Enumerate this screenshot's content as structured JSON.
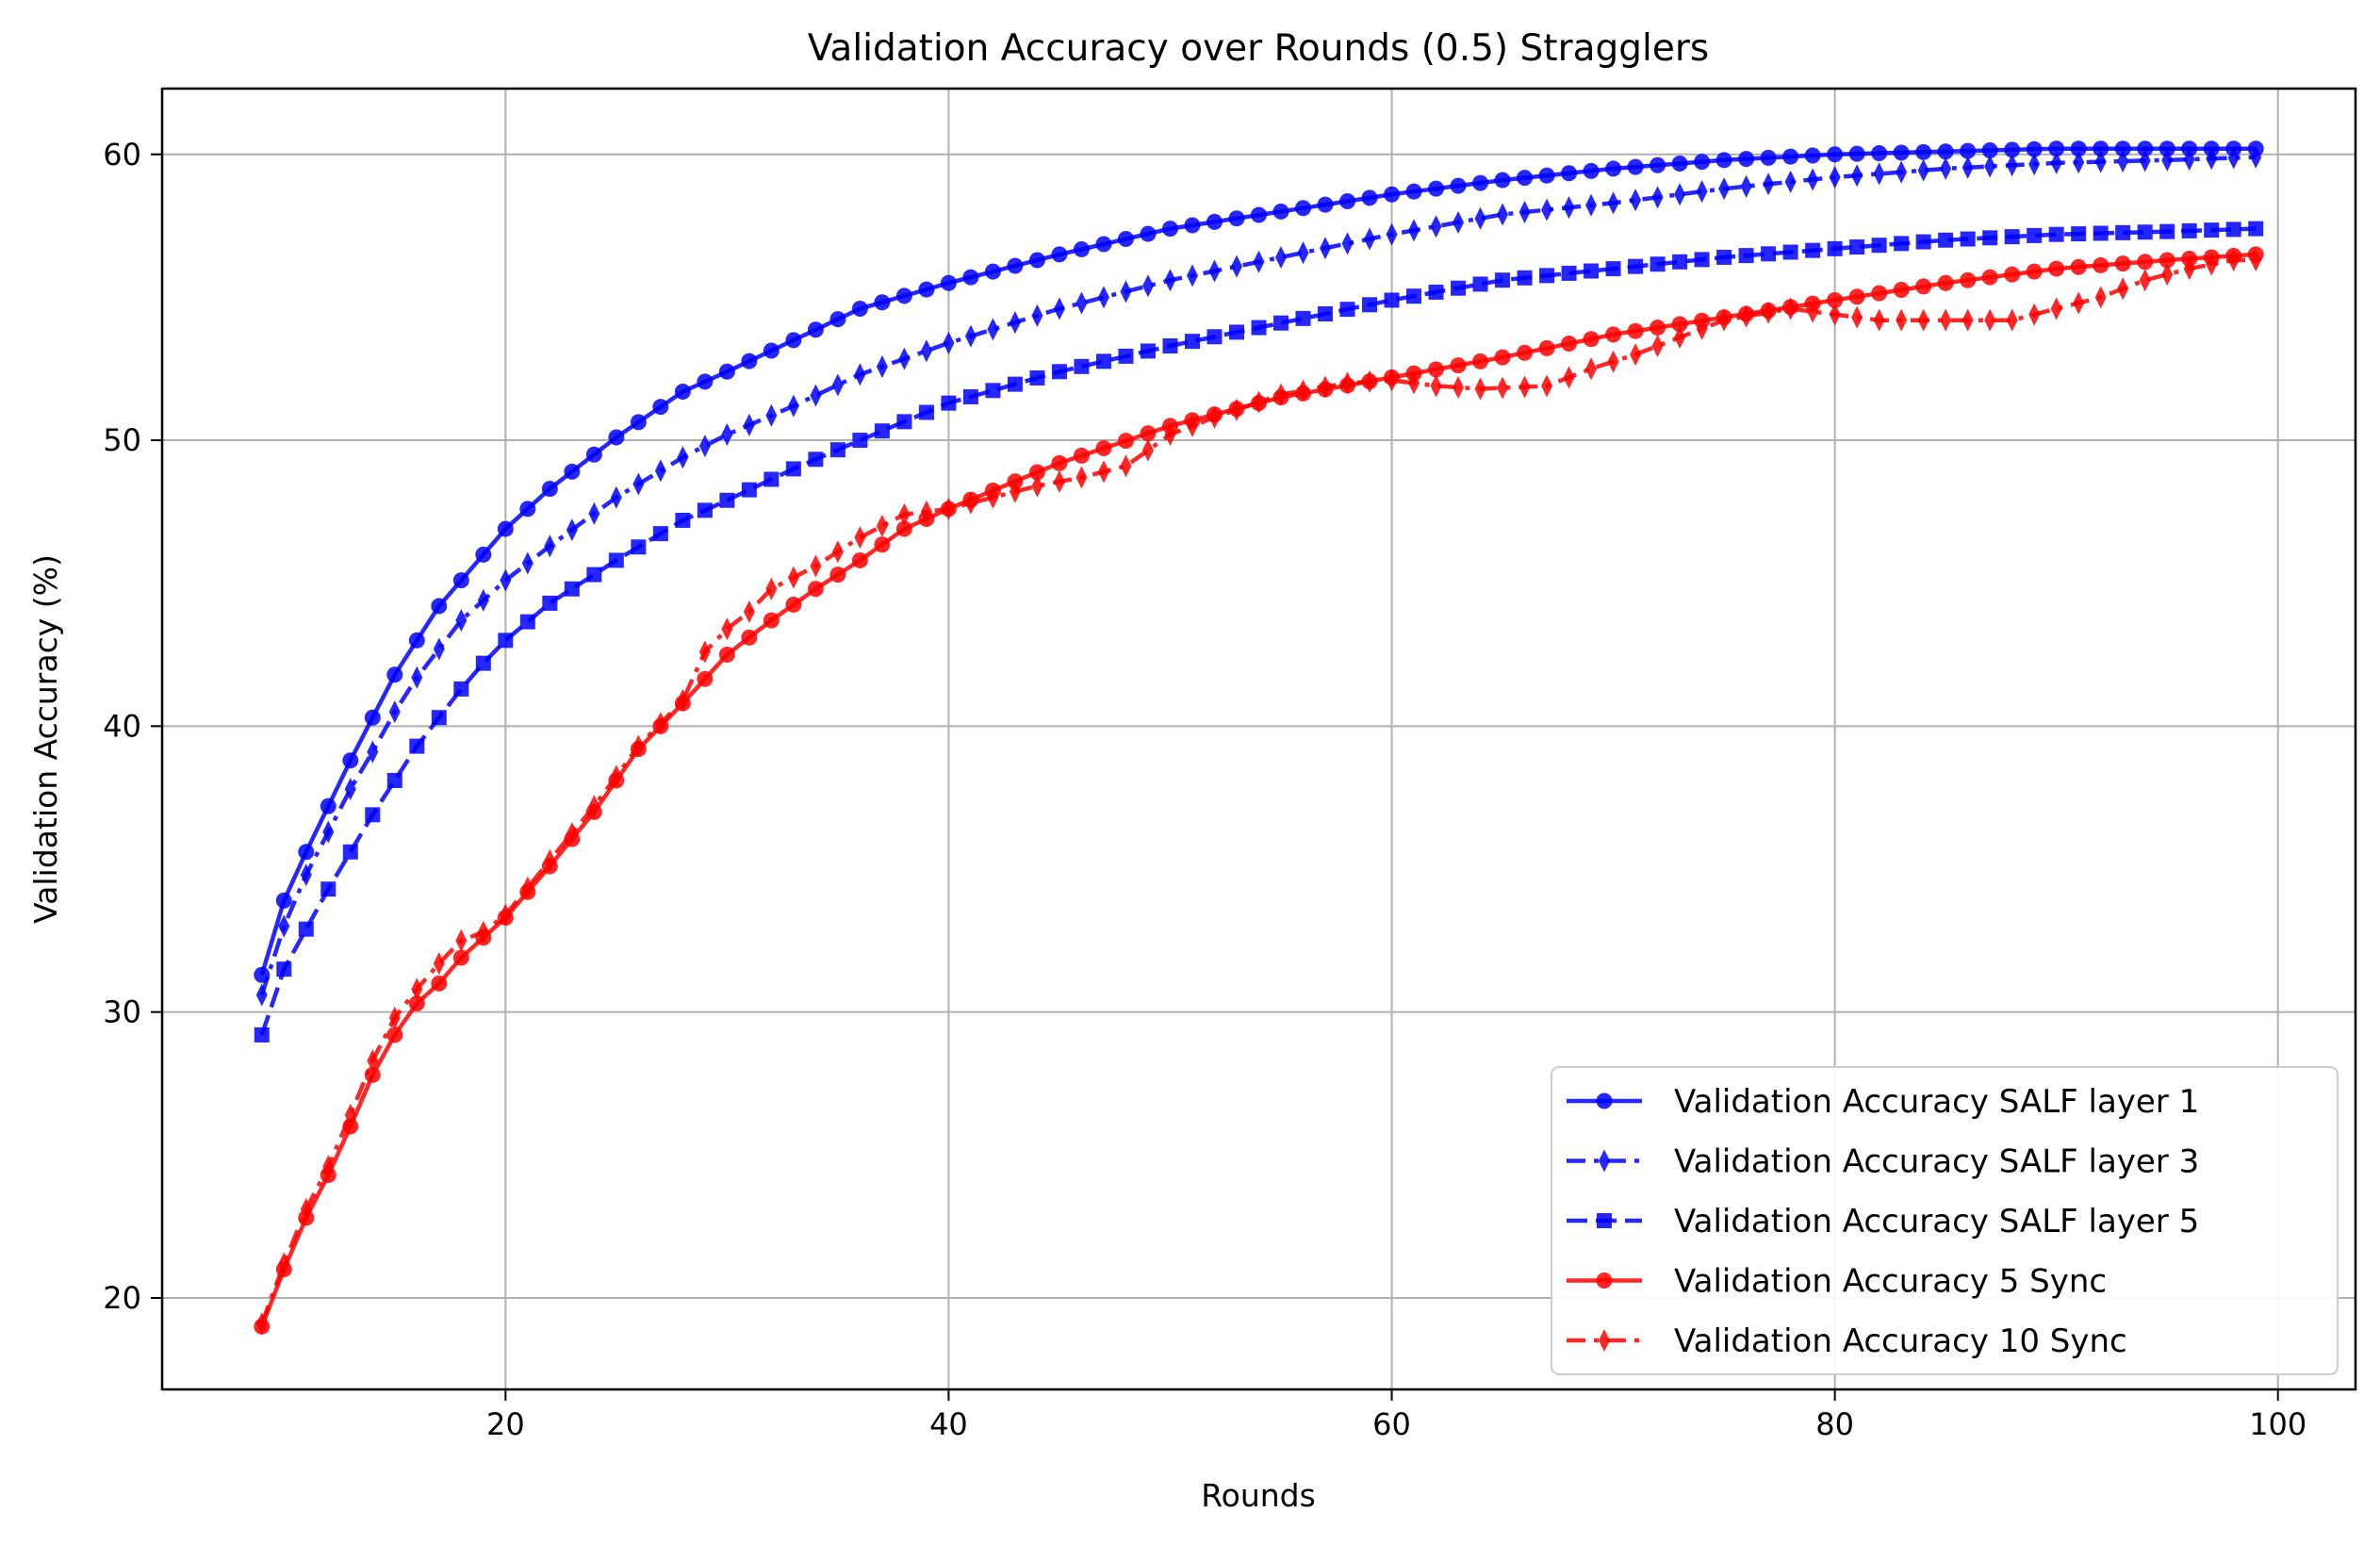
{
  "chart_data": {
    "type": "line",
    "title": "Validation Accuracy over Rounds (0.5) Stragglers",
    "xlabel": "Rounds",
    "ylabel": "Validation Accuracy (%)",
    "xlim": [
      4.5,
      103.5
    ],
    "ylim": [
      16.8,
      62.3
    ],
    "xticks": [
      20,
      40,
      60,
      80,
      100
    ],
    "yticks": [
      20,
      30,
      40,
      50,
      60
    ],
    "grid": true,
    "legend_position": "lower-right",
    "x_range": [
      9,
      99
    ],
    "series": [
      {
        "name": "Validation Accuracy SALF layer 1",
        "color": "#0000ff",
        "marker": "circle",
        "line_style": "solid",
        "anchors": [
          [
            9,
            31.3
          ],
          [
            10,
            33.9
          ],
          [
            11,
            35.6
          ],
          [
            12,
            37.2
          ],
          [
            13,
            38.8
          ],
          [
            14,
            40.3
          ],
          [
            15,
            41.8
          ],
          [
            16,
            43.0
          ],
          [
            17,
            44.2
          ],
          [
            18,
            45.1
          ],
          [
            19,
            46.0
          ],
          [
            20,
            46.9
          ],
          [
            22,
            48.3
          ],
          [
            25,
            50.1
          ],
          [
            28,
            51.7
          ],
          [
            30,
            52.4
          ],
          [
            33,
            53.5
          ],
          [
            36,
            54.6
          ],
          [
            40,
            55.5
          ],
          [
            45,
            56.5
          ],
          [
            50,
            57.4
          ],
          [
            55,
            58.0
          ],
          [
            60,
            58.6
          ],
          [
            65,
            59.1
          ],
          [
            70,
            59.5
          ],
          [
            75,
            59.8
          ],
          [
            80,
            60.0
          ],
          [
            85,
            60.1
          ],
          [
            90,
            60.2
          ],
          [
            95,
            60.2
          ],
          [
            99,
            60.2
          ]
        ]
      },
      {
        "name": "Validation Accuracy SALF layer 3",
        "color": "#0000ff",
        "marker": "thin-diamond",
        "line_style": "dashdot",
        "anchors": [
          [
            9,
            30.6
          ],
          [
            10,
            33.0
          ],
          [
            11,
            34.8
          ],
          [
            12,
            36.3
          ],
          [
            13,
            37.8
          ],
          [
            14,
            39.1
          ],
          [
            15,
            40.5
          ],
          [
            16,
            41.7
          ],
          [
            17,
            42.7
          ],
          [
            18,
            43.7
          ],
          [
            19,
            44.4
          ],
          [
            20,
            45.1
          ],
          [
            22,
            46.3
          ],
          [
            25,
            48.0
          ],
          [
            28,
            49.4
          ],
          [
            30,
            50.2
          ],
          [
            33,
            51.2
          ],
          [
            36,
            52.3
          ],
          [
            40,
            53.4
          ],
          [
            45,
            54.6
          ],
          [
            50,
            55.6
          ],
          [
            55,
            56.4
          ],
          [
            60,
            57.2
          ],
          [
            65,
            57.9
          ],
          [
            70,
            58.3
          ],
          [
            75,
            58.8
          ],
          [
            80,
            59.2
          ],
          [
            85,
            59.5
          ],
          [
            90,
            59.7
          ],
          [
            95,
            59.8
          ],
          [
            99,
            59.9
          ]
        ]
      },
      {
        "name": "Validation Accuracy SALF layer 5",
        "color": "#0000ff",
        "marker": "square",
        "line_style": "dashed",
        "anchors": [
          [
            9,
            29.2
          ],
          [
            10,
            31.5
          ],
          [
            11,
            32.9
          ],
          [
            12,
            34.3
          ],
          [
            13,
            35.6
          ],
          [
            14,
            36.9
          ],
          [
            15,
            38.1
          ],
          [
            16,
            39.3
          ],
          [
            17,
            40.3
          ],
          [
            18,
            41.3
          ],
          [
            19,
            42.2
          ],
          [
            20,
            43.0
          ],
          [
            22,
            44.3
          ],
          [
            25,
            45.8
          ],
          [
            28,
            47.2
          ],
          [
            30,
            47.9
          ],
          [
            33,
            49.0
          ],
          [
            36,
            50.0
          ],
          [
            40,
            51.3
          ],
          [
            45,
            52.4
          ],
          [
            50,
            53.3
          ],
          [
            55,
            54.1
          ],
          [
            60,
            54.9
          ],
          [
            65,
            55.6
          ],
          [
            70,
            56.0
          ],
          [
            75,
            56.4
          ],
          [
            80,
            56.7
          ],
          [
            85,
            57.0
          ],
          [
            90,
            57.2
          ],
          [
            95,
            57.3
          ],
          [
            99,
            57.4
          ]
        ]
      },
      {
        "name": "Validation Accuracy 5 Sync",
        "color": "#ff0000",
        "marker": "circle",
        "line_style": "solid",
        "anchors": [
          [
            9,
            19.0
          ],
          [
            10,
            21.0
          ],
          [
            11,
            22.8
          ],
          [
            12,
            24.3
          ],
          [
            13,
            26.0
          ],
          [
            14,
            27.8
          ],
          [
            15,
            29.2
          ],
          [
            16,
            30.3
          ],
          [
            17,
            31.0
          ],
          [
            18,
            31.9
          ],
          [
            19,
            32.6
          ],
          [
            20,
            33.3
          ],
          [
            22,
            35.1
          ],
          [
            24,
            37.0
          ],
          [
            26,
            39.2
          ],
          [
            28,
            40.8
          ],
          [
            30,
            42.5
          ],
          [
            32,
            43.7
          ],
          [
            34,
            44.8
          ],
          [
            36,
            45.8
          ],
          [
            38,
            46.9
          ],
          [
            40,
            47.6
          ],
          [
            45,
            49.2
          ],
          [
            50,
            50.5
          ],
          [
            55,
            51.5
          ],
          [
            60,
            52.2
          ],
          [
            65,
            52.9
          ],
          [
            70,
            53.7
          ],
          [
            75,
            54.3
          ],
          [
            80,
            54.9
          ],
          [
            85,
            55.5
          ],
          [
            90,
            56.0
          ],
          [
            95,
            56.3
          ],
          [
            99,
            56.5
          ]
        ]
      },
      {
        "name": "Validation Accuracy 10 Sync",
        "color": "#ff0000",
        "marker": "thin-diamond",
        "line_style": "dashdot",
        "anchors": [
          [
            9,
            19.1
          ],
          [
            10,
            21.2
          ],
          [
            11,
            23.1
          ],
          [
            12,
            24.6
          ],
          [
            13,
            26.4
          ],
          [
            14,
            28.3
          ],
          [
            15,
            29.8
          ],
          [
            16,
            30.8
          ],
          [
            17,
            31.7
          ],
          [
            18,
            32.5
          ],
          [
            19,
            32.8
          ],
          [
            20,
            33.4
          ],
          [
            22,
            35.3
          ],
          [
            24,
            37.2
          ],
          [
            26,
            39.3
          ],
          [
            28,
            40.9
          ],
          [
            29,
            42.6
          ],
          [
            30,
            43.4
          ],
          [
            31,
            44.0
          ],
          [
            32,
            44.8
          ],
          [
            34,
            45.6
          ],
          [
            36,
            46.6
          ],
          [
            38,
            47.4
          ],
          [
            40,
            47.6
          ],
          [
            42,
            48.0
          ],
          [
            44,
            48.4
          ],
          [
            46,
            48.7
          ],
          [
            48,
            49.1
          ],
          [
            50,
            50.2
          ],
          [
            52,
            50.8
          ],
          [
            55,
            51.6
          ],
          [
            58,
            52.0
          ],
          [
            60,
            52.1
          ],
          [
            62,
            51.9
          ],
          [
            64,
            51.8
          ],
          [
            67,
            51.9
          ],
          [
            69,
            52.5
          ],
          [
            71,
            53.0
          ],
          [
            73,
            53.6
          ],
          [
            75,
            54.2
          ],
          [
            78,
            54.6
          ],
          [
            80,
            54.4
          ],
          [
            82,
            54.2
          ],
          [
            84,
            54.2
          ],
          [
            86,
            54.2
          ],
          [
            88,
            54.2
          ],
          [
            90,
            54.6
          ],
          [
            92,
            55.0
          ],
          [
            94,
            55.6
          ],
          [
            96,
            56.0
          ],
          [
            98,
            56.3
          ],
          [
            99,
            56.3
          ]
        ]
      }
    ]
  }
}
